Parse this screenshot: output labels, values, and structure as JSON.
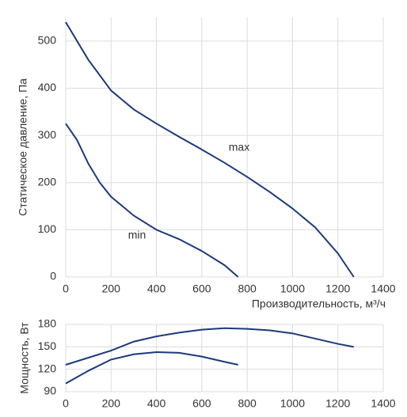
{
  "chart_data": [
    {
      "type": "line",
      "ylabel": "Статическое давление, Па",
      "xlabel": "Производительность, м³/ч",
      "xlim": [
        0,
        1400
      ],
      "xticks": [
        0,
        200,
        400,
        600,
        800,
        1000,
        1200,
        1400
      ],
      "ylim": [
        0,
        550
      ],
      "yticks": [
        0,
        100,
        200,
        300,
        400,
        500
      ],
      "grid": true,
      "series": [
        {
          "name": "max",
          "color": "#1b3a7a",
          "x": [
            0,
            100,
            200,
            250,
            300,
            400,
            500,
            600,
            700,
            800,
            900,
            1000,
            1100,
            1200,
            1270
          ],
          "values": [
            540,
            460,
            395,
            375,
            355,
            325,
            297,
            270,
            242,
            212,
            180,
            145,
            105,
            50,
            0
          ]
        },
        {
          "name": "min",
          "color": "#1b3a7a",
          "x": [
            0,
            50,
            100,
            150,
            200,
            300,
            400,
            500,
            600,
            700,
            760
          ],
          "values": [
            325,
            290,
            240,
            200,
            170,
            130,
            100,
            80,
            55,
            25,
            0
          ]
        }
      ]
    },
    {
      "type": "line",
      "ylabel": "Мощность, Вт",
      "xlim": [
        0,
        1400
      ],
      "xticks": [
        0,
        200,
        400,
        600,
        800,
        1000,
        1200,
        1400
      ],
      "ylim": [
        90,
        180
      ],
      "yticks": [
        90,
        120,
        150,
        180
      ],
      "grid": true,
      "series": [
        {
          "color": "#1b3a7a",
          "x": [
            0,
            200,
            300,
            400,
            500,
            600,
            700,
            800,
            900,
            1000,
            1100,
            1200,
            1270
          ],
          "values": [
            126,
            145,
            157,
            164,
            169,
            173,
            175,
            174,
            172,
            168,
            161,
            154,
            150
          ]
        },
        {
          "color": "#1b3a7a",
          "x": [
            0,
            100,
            200,
            300,
            400,
            500,
            600,
            700,
            760
          ],
          "values": [
            101,
            118,
            133,
            140,
            143,
            142,
            137,
            130,
            126
          ]
        }
      ]
    }
  ]
}
